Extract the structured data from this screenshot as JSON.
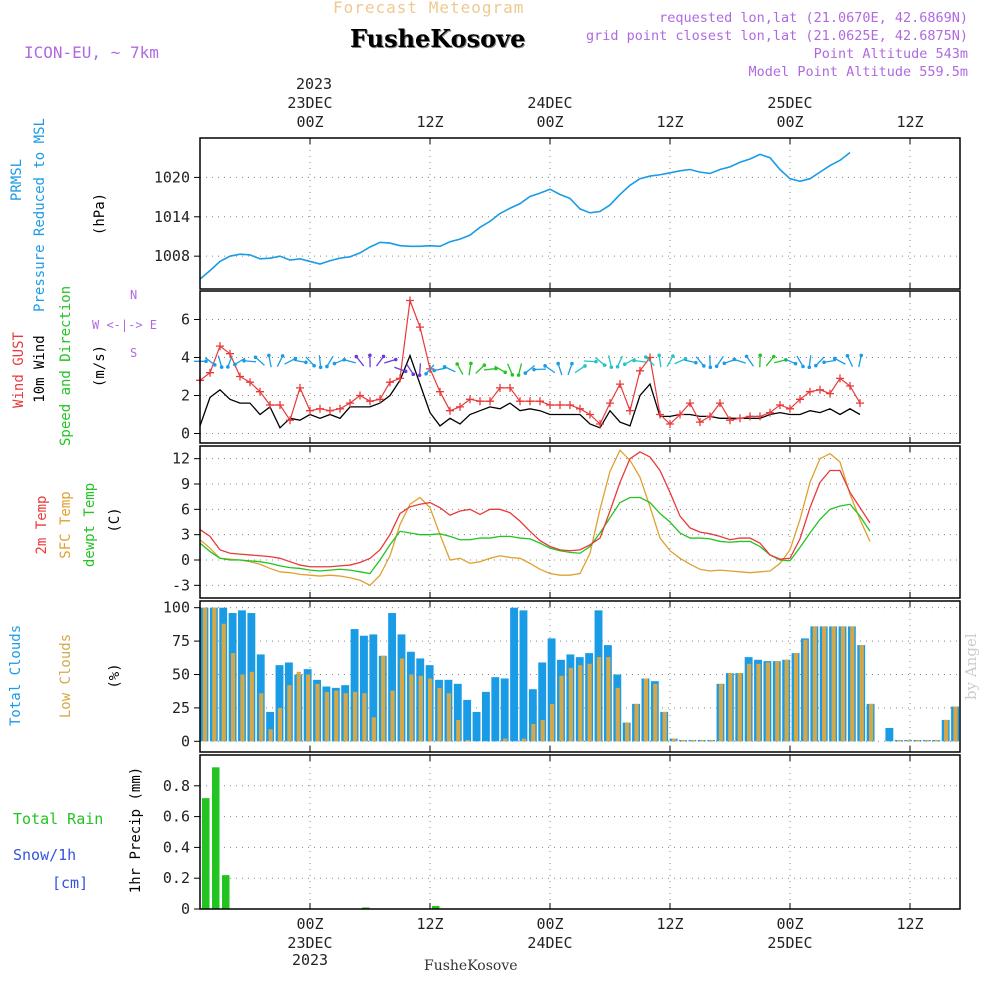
{
  "header": {
    "title": "Forecast Meteogram",
    "location": "FusheKosove",
    "model": "ICON-EU, ~ 7km",
    "requested": "requested lon,lat (21.0670E, 42.6869N)",
    "grid_point": "grid point closest lon,lat (21.0625E, 42.6875N)",
    "altitude": "Point Altitude 543m",
    "model_altitude": "Model Point Altitude 559.5m"
  },
  "footer_location": "FusheKosove",
  "watermark": "by Angel",
  "time_axis": {
    "top_year": "2023",
    "bottom_year": "2023",
    "ticks": [
      {
        "t": 0,
        "hour": "00Z",
        "date": "23DEC"
      },
      {
        "t": 12,
        "hour": "12Z",
        "date": ""
      },
      {
        "t": 24,
        "hour": "00Z",
        "date": "24DEC"
      },
      {
        "t": 36,
        "hour": "12Z",
        "date": ""
      },
      {
        "t": 48,
        "hour": "00Z",
        "date": "25DEC"
      },
      {
        "t": 60,
        "hour": "12Z",
        "date": ""
      }
    ]
  },
  "panel_labels": {
    "pres1": "PRMSL",
    "pres2": "Pressure Reduced to MSL",
    "pres_unit": "(hPa)",
    "wind1": "Wind GUST",
    "wind2": "10m Wind",
    "wind3": "Speed and Direction",
    "wind_unit": "(m/s)",
    "compass_n": "N",
    "compass_s": "S",
    "compass_we": "W <-|-> E",
    "temp1": "2m Temp",
    "temp2": "SFC Temp",
    "temp3": "dewpt Temp",
    "temp_unit": "(C)",
    "cloud1": "Total Clouds",
    "cloud2": "Low Clouds",
    "cloud_unit": "(%)",
    "rain1": "Total  Rain",
    "rain2": "Snow/1h",
    "rain3": "[cm]",
    "rain_unit": "1hr Precip (mm)"
  },
  "colors": {
    "pressure": "#1a9be6",
    "gust": "#e83a3a",
    "wind": "#000000",
    "temp2m": "#e83a3a",
    "sfc": "#e0a030",
    "dewpt": "#22c422",
    "total_clouds": "#1a9be6",
    "low_clouds": "#d4a848",
    "rain": "#22c422",
    "snow": "#3355dd",
    "label_purple": "#b06ae0"
  },
  "chart_data": [
    {
      "type": "line",
      "name": "pressure",
      "x_start_hour": -11,
      "x_end_hour": 65,
      "ylim": [
        1003,
        1026
      ],
      "yticks": [
        1008,
        1014,
        1020
      ],
      "values": [
        1004.5,
        1005.8,
        1007.2,
        1008.0,
        1008.3,
        1008.2,
        1007.6,
        1007.7,
        1008.0,
        1007.4,
        1007.6,
        1007.2,
        1006.8,
        1007.3,
        1007.7,
        1007.9,
        1008.5,
        1009.4,
        1010.1,
        1010.0,
        1009.6,
        1009.5,
        1009.5,
        1009.6,
        1009.5,
        1010.2,
        1010.6,
        1011.2,
        1012.4,
        1013.3,
        1014.5,
        1015.3,
        1016.0,
        1017.1,
        1017.6,
        1018.2,
        1017.4,
        1016.8,
        1015.2,
        1014.6,
        1014.8,
        1015.8,
        1017.4,
        1018.8,
        1019.8,
        1020.2,
        1020.4,
        1020.7,
        1021.0,
        1021.2,
        1020.8,
        1020.6,
        1021.2,
        1021.6,
        1022.3,
        1022.8,
        1023.5,
        1023.0,
        1021.2,
        1019.8,
        1019.4,
        1019.8,
        1020.8,
        1021.8,
        1022.6,
        1023.8
      ]
    },
    {
      "type": "line",
      "name": "wind",
      "x_start_hour": -11,
      "x_end_hour": 65,
      "ylim": [
        -0.5,
        7.5
      ],
      "yticks": [
        0,
        2,
        4,
        6
      ],
      "gust": [
        2.8,
        3.2,
        4.6,
        4.2,
        3.0,
        2.7,
        2.2,
        1.5,
        1.5,
        0.7,
        2.4,
        1.2,
        1.3,
        1.2,
        1.3,
        1.6,
        2.0,
        1.7,
        1.8,
        2.7,
        2.9,
        7.0,
        5.6,
        3.4,
        2.2,
        1.2,
        1.4,
        1.8,
        1.7,
        1.7,
        2.4,
        2.4,
        1.7,
        1.7,
        1.7,
        1.5,
        1.5,
        1.5,
        1.3,
        1.0,
        0.5,
        1.6,
        2.6,
        1.2,
        3.3,
        4.0,
        1.0,
        0.5,
        1.0,
        1.6,
        0.6,
        0.9,
        1.6,
        0.7,
        0.8,
        0.9,
        0.9,
        1.1,
        1.5,
        1.3,
        1.8,
        2.2,
        2.3,
        2.1,
        2.9,
        2.5,
        1.6
      ],
      "speed": [
        0.4,
        1.9,
        2.3,
        1.8,
        1.6,
        1.6,
        1.0,
        1.4,
        0.3,
        0.8,
        0.7,
        1.0,
        0.8,
        1.0,
        0.8,
        1.4,
        1.4,
        1.4,
        1.6,
        2.0,
        2.8,
        4.1,
        2.6,
        1.1,
        0.4,
        0.8,
        0.5,
        1.0,
        1.2,
        1.4,
        1.3,
        1.6,
        1.2,
        1.3,
        1.2,
        1.0,
        1.0,
        1.0,
        1.0,
        0.5,
        0.3,
        1.2,
        0.6,
        0.4,
        2.0,
        2.6,
        0.9,
        0.9,
        1.0,
        1.0,
        0.9,
        0.9,
        0.8,
        0.8,
        0.8,
        0.8,
        0.8,
        1.0,
        1.1,
        1.0,
        1.0,
        1.2,
        1.1,
        1.3,
        1.0,
        1.3,
        1.0
      ]
    },
    {
      "type": "line",
      "name": "temperature",
      "x_start_hour": -11,
      "x_end_hour": 65,
      "ylim": [
        -4.5,
        13.5
      ],
      "yticks": [
        -3,
        0,
        3,
        6,
        9,
        12
      ],
      "temp2m": [
        3.6,
        2.8,
        1.2,
        0.8,
        0.7,
        0.6,
        0.5,
        0.4,
        0.2,
        -0.2,
        -0.6,
        -0.8,
        -0.8,
        -0.8,
        -0.7,
        -0.6,
        -0.3,
        0.2,
        1.2,
        3.0,
        5.5,
        6.3,
        6.6,
        6.8,
        6.2,
        5.3,
        5.8,
        6.0,
        5.4,
        6.0,
        6.0,
        5.6,
        4.6,
        3.4,
        2.3,
        1.6,
        1.2,
        1.1,
        1.2,
        1.8,
        2.6,
        5.8,
        9.2,
        12.0,
        12.8,
        12.2,
        10.6,
        8.0,
        5.2,
        3.8,
        3.3,
        3.1,
        2.8,
        2.4,
        2.6,
        2.6,
        2.0,
        0.6,
        0.1,
        0.2,
        2.5,
        6.2,
        9.2,
        10.6,
        10.6,
        8.0,
        6.2,
        4.4
      ],
      "sfc": [
        2.4,
        1.4,
        0.2,
        0.1,
        0.0,
        -0.2,
        -0.5,
        -1.0,
        -1.4,
        -1.5,
        -1.7,
        -1.8,
        -1.9,
        -1.8,
        -1.9,
        -2.1,
        -2.4,
        -3.0,
        -1.8,
        0.5,
        4.2,
        6.6,
        7.4,
        6.2,
        3.0,
        0.0,
        0.2,
        -0.4,
        -0.2,
        0.2,
        0.5,
        0.3,
        0.2,
        -0.4,
        -1.1,
        -1.6,
        -1.8,
        -1.8,
        -1.6,
        0.8,
        6.0,
        10.5,
        13.0,
        11.8,
        9.8,
        6.3,
        2.6,
        1.1,
        0.2,
        -0.5,
        -1.1,
        -1.3,
        -1.2,
        -1.3,
        -1.4,
        -1.5,
        -1.4,
        -1.3,
        -0.4,
        1.2,
        4.8,
        9.2,
        12.0,
        12.6,
        11.6,
        7.8,
        4.8,
        2.2
      ],
      "dewpt": [
        2.0,
        1.0,
        0.2,
        0.0,
        0.0,
        -0.1,
        -0.2,
        -0.4,
        -0.7,
        -0.9,
        -1.0,
        -1.2,
        -1.3,
        -1.2,
        -1.1,
        -1.2,
        -1.4,
        -1.6,
        0.0,
        1.8,
        3.4,
        3.2,
        3.0,
        3.0,
        3.1,
        2.8,
        2.4,
        2.4,
        2.6,
        2.6,
        2.8,
        2.8,
        2.6,
        2.5,
        2.0,
        1.4,
        1.1,
        0.9,
        0.8,
        1.6,
        3.2,
        5.0,
        6.8,
        7.4,
        7.4,
        6.8,
        5.5,
        4.5,
        3.2,
        2.6,
        2.6,
        2.5,
        2.2,
        2.1,
        2.2,
        2.2,
        1.6,
        0.6,
        0.0,
        -0.1,
        1.5,
        3.2,
        4.8,
        6.0,
        6.4,
        6.6,
        5.2,
        3.4
      ]
    },
    {
      "type": "bar",
      "name": "clouds",
      "x_start_hour": -11,
      "x_end_hour": 65,
      "ylim": [
        -8,
        105
      ],
      "yticks": [
        0,
        25,
        50,
        75,
        100
      ],
      "total": [
        100,
        100,
        100,
        96,
        98,
        96,
        65,
        22,
        57,
        59,
        50,
        54,
        46,
        41,
        40,
        42,
        84,
        79,
        80,
        64,
        96,
        80,
        67,
        62,
        57,
        46,
        46,
        43,
        31,
        22,
        37,
        48,
        47,
        100,
        98,
        39,
        59,
        77,
        61,
        65,
        63,
        66,
        98,
        72,
        50,
        14,
        28,
        47,
        45,
        22,
        2,
        1,
        1,
        1,
        1,
        43,
        51,
        51,
        63,
        61,
        60,
        60,
        61,
        66,
        77,
        86,
        86,
        86,
        86,
        86,
        72,
        28,
        0,
        10,
        1,
        1,
        1,
        1,
        1,
        16,
        26
      ],
      "low": [
        100,
        100,
        88,
        66,
        50,
        52,
        36,
        9,
        25,
        42,
        52,
        50,
        43,
        37,
        38,
        36,
        37,
        36,
        18,
        64,
        38,
        62,
        50,
        49,
        47,
        40,
        36,
        16,
        1,
        0,
        0,
        0,
        2,
        0,
        2,
        13,
        16,
        28,
        49,
        55,
        57,
        58,
        63,
        63,
        40,
        14,
        28,
        47,
        43,
        22,
        2,
        1,
        1,
        1,
        1,
        43,
        51,
        51,
        58,
        58,
        59,
        60,
        61,
        66,
        76,
        86,
        86,
        86,
        86,
        86,
        72,
        28,
        0,
        0,
        1,
        1,
        1,
        1,
        1,
        16,
        26
      ]
    },
    {
      "type": "bar",
      "name": "precipitation",
      "x_start_hour": -11,
      "x_end_hour": 65,
      "ylim": [
        0,
        1.0
      ],
      "yticks": [
        0,
        0.2,
        0.4,
        0.6,
        0.8
      ],
      "rain": [
        0.72,
        0.92,
        0.22,
        0,
        0,
        0,
        0,
        0,
        0,
        0,
        0,
        0,
        0,
        0,
        0,
        0,
        0.01,
        0,
        0,
        0,
        0,
        0,
        0,
        0.02,
        0,
        0,
        0,
        0,
        0,
        0,
        0,
        0,
        0,
        0,
        0,
        0,
        0,
        0,
        0,
        0,
        0,
        0,
        0,
        0,
        0,
        0,
        0,
        0,
        0,
        0,
        0,
        0,
        0,
        0,
        0,
        0,
        0,
        0,
        0,
        0,
        0,
        0,
        0,
        0,
        0,
        0,
        0,
        0,
        0,
        0,
        0,
        0,
        0,
        0,
        0,
        0
      ]
    }
  ]
}
